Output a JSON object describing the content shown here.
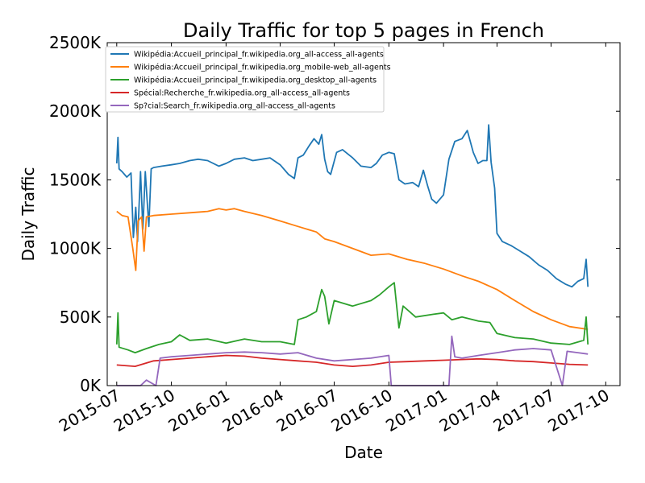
{
  "chart_data": {
    "type": "line",
    "title": "Daily Traffic for top 5 pages in French",
    "xlabel": "Date",
    "ylabel": "Daily Traffic",
    "xlim": [
      "2015-06-15",
      "2017-10-25"
    ],
    "ylim": [
      0,
      2500000
    ],
    "y_ticks": [
      {
        "value": 0,
        "label": "0K"
      },
      {
        "value": 500000,
        "label": "500K"
      },
      {
        "value": 1000000,
        "label": "1000K"
      },
      {
        "value": 1500000,
        "label": "1500K"
      },
      {
        "value": 2000000,
        "label": "2000K"
      },
      {
        "value": 2500000,
        "label": "2500K"
      }
    ],
    "x_ticks": [
      {
        "date": "2015-07-01",
        "label": "2015-07"
      },
      {
        "date": "2015-10-01",
        "label": "2015-10"
      },
      {
        "date": "2016-01-01",
        "label": "2016-01"
      },
      {
        "date": "2016-04-01",
        "label": "2016-04"
      },
      {
        "date": "2016-07-01",
        "label": "2016-07"
      },
      {
        "date": "2016-10-01",
        "label": "2016-10"
      },
      {
        "date": "2017-01-01",
        "label": "2017-01"
      },
      {
        "date": "2017-04-01",
        "label": "2017-04"
      },
      {
        "date": "2017-07-01",
        "label": "2017-07"
      },
      {
        "date": "2017-10-01",
        "label": "2017-10"
      }
    ],
    "grid": false,
    "legend_position": "top-left",
    "series": [
      {
        "name": "Wikipédia:Accueil_principal_fr.wikipedia.org_all-access_all-agents",
        "color": "#1f77b4",
        "points": [
          [
            "2015-07-01",
            1620000
          ],
          [
            "2015-07-03",
            1810000
          ],
          [
            "2015-07-05",
            1580000
          ],
          [
            "2015-07-10",
            1560000
          ],
          [
            "2015-07-18",
            1520000
          ],
          [
            "2015-07-25",
            1550000
          ],
          [
            "2015-07-29",
            1080000
          ],
          [
            "2015-08-02",
            1300000
          ],
          [
            "2015-08-05",
            1050000
          ],
          [
            "2015-08-10",
            1560000
          ],
          [
            "2015-08-14",
            1140000
          ],
          [
            "2015-08-18",
            1560000
          ],
          [
            "2015-08-24",
            1160000
          ],
          [
            "2015-08-28",
            1580000
          ],
          [
            "2015-09-01",
            1590000
          ],
          [
            "2015-09-15",
            1600000
          ],
          [
            "2015-10-01",
            1610000
          ],
          [
            "2015-10-15",
            1620000
          ],
          [
            "2015-11-01",
            1640000
          ],
          [
            "2015-11-15",
            1650000
          ],
          [
            "2015-12-01",
            1640000
          ],
          [
            "2015-12-20",
            1600000
          ],
          [
            "2016-01-01",
            1620000
          ],
          [
            "2016-01-15",
            1650000
          ],
          [
            "2016-02-01",
            1660000
          ],
          [
            "2016-02-15",
            1640000
          ],
          [
            "2016-03-01",
            1650000
          ],
          [
            "2016-03-15",
            1660000
          ],
          [
            "2016-04-01",
            1610000
          ],
          [
            "2016-04-15",
            1540000
          ],
          [
            "2016-04-25",
            1510000
          ],
          [
            "2016-05-01",
            1660000
          ],
          [
            "2016-05-10",
            1680000
          ],
          [
            "2016-05-20",
            1750000
          ],
          [
            "2016-05-28",
            1800000
          ],
          [
            "2016-06-05",
            1760000
          ],
          [
            "2016-06-10",
            1830000
          ],
          [
            "2016-06-15",
            1650000
          ],
          [
            "2016-06-20",
            1560000
          ],
          [
            "2016-06-25",
            1540000
          ],
          [
            "2016-07-05",
            1700000
          ],
          [
            "2016-07-15",
            1720000
          ],
          [
            "2016-08-01",
            1660000
          ],
          [
            "2016-08-15",
            1600000
          ],
          [
            "2016-09-01",
            1590000
          ],
          [
            "2016-09-10",
            1620000
          ],
          [
            "2016-09-20",
            1680000
          ],
          [
            "2016-10-01",
            1700000
          ],
          [
            "2016-10-10",
            1690000
          ],
          [
            "2016-10-18",
            1500000
          ],
          [
            "2016-10-28",
            1470000
          ],
          [
            "2016-11-10",
            1480000
          ],
          [
            "2016-11-20",
            1450000
          ],
          [
            "2016-11-28",
            1570000
          ],
          [
            "2016-12-05",
            1460000
          ],
          [
            "2016-12-12",
            1360000
          ],
          [
            "2016-12-20",
            1330000
          ],
          [
            "2017-01-01",
            1390000
          ],
          [
            "2017-01-10",
            1650000
          ],
          [
            "2017-01-20",
            1780000
          ],
          [
            "2017-02-01",
            1800000
          ],
          [
            "2017-02-10",
            1860000
          ],
          [
            "2017-02-20",
            1700000
          ],
          [
            "2017-02-28",
            1620000
          ],
          [
            "2017-03-08",
            1640000
          ],
          [
            "2017-03-15",
            1640000
          ],
          [
            "2017-03-18",
            1900000
          ],
          [
            "2017-03-22",
            1630000
          ],
          [
            "2017-03-28",
            1440000
          ],
          [
            "2017-04-01",
            1110000
          ],
          [
            "2017-04-10",
            1050000
          ],
          [
            "2017-04-25",
            1020000
          ],
          [
            "2017-05-10",
            980000
          ],
          [
            "2017-05-25",
            940000
          ],
          [
            "2017-06-10",
            880000
          ],
          [
            "2017-06-25",
            840000
          ],
          [
            "2017-07-10",
            780000
          ],
          [
            "2017-07-25",
            740000
          ],
          [
            "2017-08-05",
            720000
          ],
          [
            "2017-08-15",
            760000
          ],
          [
            "2017-08-25",
            780000
          ],
          [
            "2017-08-29",
            920000
          ],
          [
            "2017-09-01",
            720000
          ]
        ]
      },
      {
        "name": "Wikipédia:Accueil_principal_fr.wikipedia.org_mobile-web_all-agents",
        "color": "#ff7f0e",
        "points": [
          [
            "2015-07-01",
            1270000
          ],
          [
            "2015-07-10",
            1240000
          ],
          [
            "2015-07-20",
            1230000
          ],
          [
            "2015-07-28",
            1000000
          ],
          [
            "2015-08-02",
            840000
          ],
          [
            "2015-08-06",
            1200000
          ],
          [
            "2015-08-12",
            1230000
          ],
          [
            "2015-08-16",
            980000
          ],
          [
            "2015-08-20",
            1230000
          ],
          [
            "2015-09-01",
            1240000
          ],
          [
            "2015-10-01",
            1250000
          ],
          [
            "2015-11-01",
            1260000
          ],
          [
            "2015-12-01",
            1270000
          ],
          [
            "2015-12-20",
            1290000
          ],
          [
            "2016-01-01",
            1280000
          ],
          [
            "2016-01-15",
            1290000
          ],
          [
            "2016-02-01",
            1270000
          ],
          [
            "2016-03-01",
            1240000
          ],
          [
            "2016-04-01",
            1200000
          ],
          [
            "2016-05-01",
            1160000
          ],
          [
            "2016-06-01",
            1120000
          ],
          [
            "2016-06-15",
            1070000
          ],
          [
            "2016-07-01",
            1050000
          ],
          [
            "2016-08-01",
            1000000
          ],
          [
            "2016-09-01",
            950000
          ],
          [
            "2016-10-01",
            960000
          ],
          [
            "2016-11-01",
            920000
          ],
          [
            "2016-12-01",
            890000
          ],
          [
            "2017-01-01",
            850000
          ],
          [
            "2017-02-01",
            800000
          ],
          [
            "2017-03-01",
            760000
          ],
          [
            "2017-04-01",
            700000
          ],
          [
            "2017-05-01",
            620000
          ],
          [
            "2017-06-01",
            540000
          ],
          [
            "2017-07-01",
            480000
          ],
          [
            "2017-08-01",
            430000
          ],
          [
            "2017-09-01",
            410000
          ]
        ]
      },
      {
        "name": "Wikipédia:Accueil_principal_fr.wikipedia.org_desktop_all-agents",
        "color": "#2ca02c",
        "points": [
          [
            "2015-07-01",
            300000
          ],
          [
            "2015-07-03",
            530000
          ],
          [
            "2015-07-05",
            280000
          ],
          [
            "2015-07-20",
            260000
          ],
          [
            "2015-08-01",
            240000
          ],
          [
            "2015-08-20",
            270000
          ],
          [
            "2015-09-10",
            300000
          ],
          [
            "2015-10-01",
            320000
          ],
          [
            "2015-10-15",
            370000
          ],
          [
            "2015-11-01",
            330000
          ],
          [
            "2015-12-01",
            340000
          ],
          [
            "2016-01-01",
            310000
          ],
          [
            "2016-02-01",
            340000
          ],
          [
            "2016-03-01",
            320000
          ],
          [
            "2016-04-01",
            320000
          ],
          [
            "2016-04-25",
            300000
          ],
          [
            "2016-05-01",
            480000
          ],
          [
            "2016-05-15",
            500000
          ],
          [
            "2016-06-01",
            540000
          ],
          [
            "2016-06-10",
            700000
          ],
          [
            "2016-06-15",
            650000
          ],
          [
            "2016-06-22",
            450000
          ],
          [
            "2016-07-01",
            620000
          ],
          [
            "2016-08-01",
            580000
          ],
          [
            "2016-09-01",
            620000
          ],
          [
            "2016-09-15",
            660000
          ],
          [
            "2016-10-01",
            720000
          ],
          [
            "2016-10-10",
            750000
          ],
          [
            "2016-10-18",
            420000
          ],
          [
            "2016-10-25",
            580000
          ],
          [
            "2016-11-15",
            500000
          ],
          [
            "2016-12-15",
            520000
          ],
          [
            "2017-01-01",
            530000
          ],
          [
            "2017-01-15",
            480000
          ],
          [
            "2017-02-01",
            500000
          ],
          [
            "2017-03-01",
            470000
          ],
          [
            "2017-03-20",
            460000
          ],
          [
            "2017-04-01",
            380000
          ],
          [
            "2017-05-01",
            350000
          ],
          [
            "2017-06-01",
            340000
          ],
          [
            "2017-07-01",
            310000
          ],
          [
            "2017-08-01",
            300000
          ],
          [
            "2017-08-25",
            330000
          ],
          [
            "2017-08-29",
            500000
          ],
          [
            "2017-09-01",
            300000
          ]
        ]
      },
      {
        "name": "Spécial:Recherche_fr.wikipedia.org_all-access_all-agents",
        "color": "#d62728",
        "points": [
          [
            "2015-07-01",
            150000
          ],
          [
            "2015-08-01",
            140000
          ],
          [
            "2015-09-01",
            180000
          ],
          [
            "2015-10-01",
            190000
          ],
          [
            "2015-11-01",
            200000
          ],
          [
            "2015-12-01",
            210000
          ],
          [
            "2016-01-01",
            220000
          ],
          [
            "2016-02-01",
            215000
          ],
          [
            "2016-03-01",
            200000
          ],
          [
            "2016-04-01",
            190000
          ],
          [
            "2016-05-01",
            180000
          ],
          [
            "2016-06-01",
            170000
          ],
          [
            "2016-07-01",
            150000
          ],
          [
            "2016-08-01",
            140000
          ],
          [
            "2016-09-01",
            150000
          ],
          [
            "2016-10-01",
            170000
          ],
          [
            "2016-11-01",
            175000
          ],
          [
            "2016-12-01",
            180000
          ],
          [
            "2017-01-01",
            185000
          ],
          [
            "2017-02-01",
            190000
          ],
          [
            "2017-03-01",
            195000
          ],
          [
            "2017-04-01",
            190000
          ],
          [
            "2017-05-01",
            180000
          ],
          [
            "2017-06-01",
            175000
          ],
          [
            "2017-07-01",
            165000
          ],
          [
            "2017-08-01",
            155000
          ],
          [
            "2017-09-01",
            150000
          ]
        ]
      },
      {
        "name": "Sp?cial:Search_fr.wikipedia.org_all-access_all-agents",
        "color": "#9467bd",
        "points": [
          [
            "2015-07-01",
            0
          ],
          [
            "2015-08-10",
            0
          ],
          [
            "2015-08-20",
            40000
          ],
          [
            "2015-09-05",
            0
          ],
          [
            "2015-09-12",
            200000
          ],
          [
            "2015-10-01",
            210000
          ],
          [
            "2015-11-01",
            220000
          ],
          [
            "2015-12-01",
            230000
          ],
          [
            "2016-01-01",
            240000
          ],
          [
            "2016-02-01",
            245000
          ],
          [
            "2016-03-01",
            240000
          ],
          [
            "2016-04-01",
            230000
          ],
          [
            "2016-05-01",
            240000
          ],
          [
            "2016-06-01",
            200000
          ],
          [
            "2016-07-01",
            180000
          ],
          [
            "2016-08-01",
            190000
          ],
          [
            "2016-09-01",
            200000
          ],
          [
            "2016-10-01",
            220000
          ],
          [
            "2016-10-05",
            0
          ],
          [
            "2016-12-01",
            0
          ],
          [
            "2017-01-10",
            0
          ],
          [
            "2017-01-15",
            360000
          ],
          [
            "2017-01-20",
            210000
          ],
          [
            "2017-02-01",
            200000
          ],
          [
            "2017-03-01",
            220000
          ],
          [
            "2017-04-01",
            240000
          ],
          [
            "2017-05-01",
            260000
          ],
          [
            "2017-06-01",
            270000
          ],
          [
            "2017-07-01",
            260000
          ],
          [
            "2017-07-20",
            0
          ],
          [
            "2017-07-28",
            250000
          ],
          [
            "2017-08-15",
            240000
          ],
          [
            "2017-09-01",
            230000
          ]
        ]
      }
    ]
  }
}
